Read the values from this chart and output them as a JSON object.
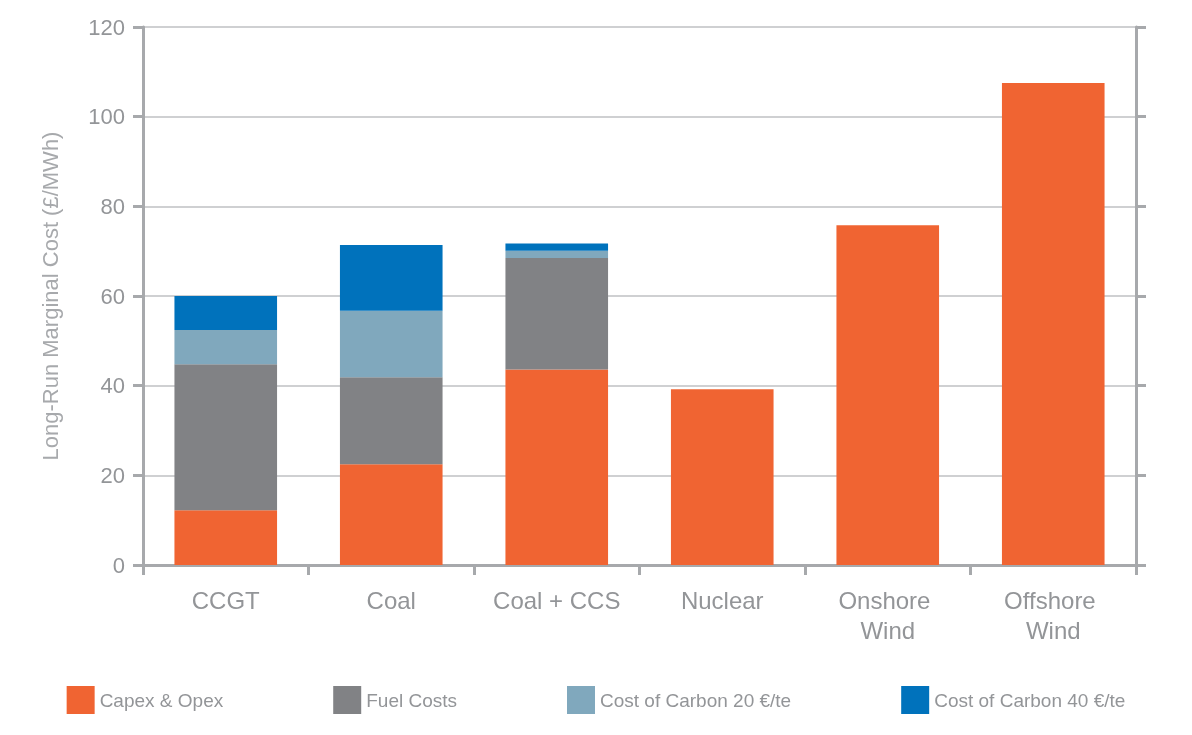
{
  "chart_data": {
    "type": "bar",
    "stacked": true,
    "ylabel": "Long-Run Marginal Cost (£/MWh)",
    "categories": [
      "CCGT",
      "Coal",
      "Coal + CCS",
      "Nuclear",
      "Onshore Wind",
      "Offshore Wind"
    ],
    "series": [
      {
        "name": "Capex & Opex",
        "color": "#f06432",
        "values": [
          12.2,
          22.5,
          43.6,
          39.2,
          75.8,
          107.5
        ]
      },
      {
        "name": "Fuel Costs",
        "color": "#818285",
        "values": [
          32.6,
          19.4,
          24.9,
          null,
          null,
          null
        ]
      },
      {
        "name": "Cost of Carbon 20 €/te",
        "color": "#80a8bd",
        "values": [
          7.6,
          14.8,
          1.6,
          null,
          null,
          null
        ]
      },
      {
        "name": "Cost of Carbon 40 €/te",
        "color": "#0072bc",
        "values": [
          7.6,
          14.7,
          1.6,
          null,
          null,
          null
        ]
      }
    ],
    "ylim": [
      0,
      120
    ],
    "yticks": [
      0,
      20,
      40,
      60,
      80,
      100,
      120
    ],
    "grid": "y",
    "legend": "bottom"
  }
}
